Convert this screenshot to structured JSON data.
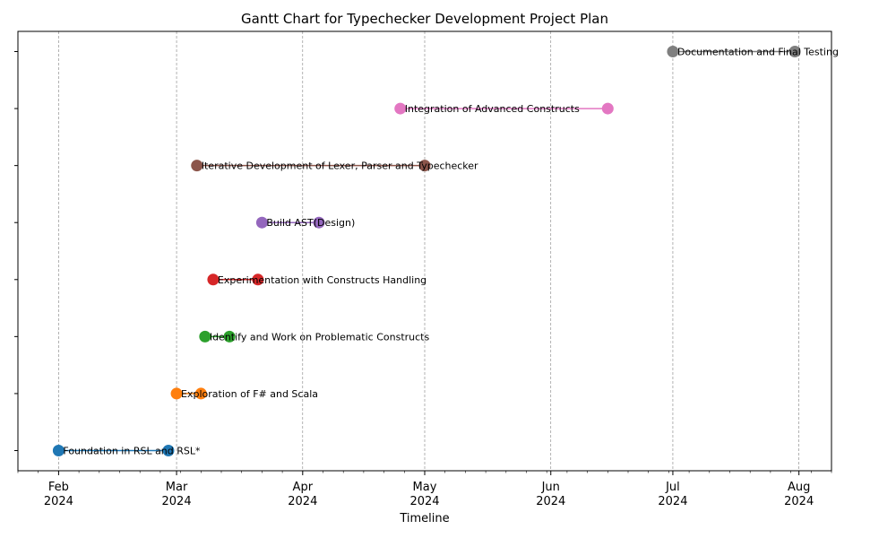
{
  "chart_data": {
    "type": "gantt",
    "title": "Gantt Chart for Typechecker Development Project Plan",
    "xlabel": "Timeline",
    "ylabel": "",
    "xlim": [
      "2024-01-22",
      "2024-08-09"
    ],
    "grid": "vertical dashed gray lines at month ticks",
    "x_ticks": [
      {
        "date": "2024-02-01",
        "month": "Feb",
        "year": "2024"
      },
      {
        "date": "2024-03-01",
        "month": "Mar",
        "year": "2024"
      },
      {
        "date": "2024-04-01",
        "month": "Apr",
        "year": "2024"
      },
      {
        "date": "2024-05-01",
        "month": "May",
        "year": "2024"
      },
      {
        "date": "2024-06-01",
        "month": "Jun",
        "year": "2024"
      },
      {
        "date": "2024-07-01",
        "month": "Jul",
        "year": "2024"
      },
      {
        "date": "2024-08-01",
        "month": "Aug",
        "year": "2024"
      }
    ],
    "tasks": [
      {
        "name": "Foundation in RSL and RSL*",
        "start": "2024-02-01",
        "end": "2024-02-28",
        "color": "#1f77b4"
      },
      {
        "name": "Exploration of F# and Scala",
        "start": "2024-03-01",
        "end": "2024-03-07",
        "color": "#ff7f0e"
      },
      {
        "name": "Identify and Work on Problematic Constructs",
        "start": "2024-03-08",
        "end": "2024-03-14",
        "color": "#2ca02c"
      },
      {
        "name": "Experimentation with Constructs Handling",
        "start": "2024-03-10",
        "end": "2024-03-21",
        "color": "#d62728"
      },
      {
        "name": "Build AST(Design)",
        "start": "2024-03-22",
        "end": "2024-04-05",
        "color": "#9467bd"
      },
      {
        "name": "Iterative Development of Lexer, Parser and Typechecker",
        "start": "2024-03-06",
        "end": "2024-05-01",
        "color": "#8c564b"
      },
      {
        "name": "Integration of Advanced Constructs",
        "start": "2024-04-25",
        "end": "2024-06-15",
        "color": "#e377c2"
      },
      {
        "name": "Documentation and Final Testing",
        "start": "2024-07-01",
        "end": "2024-07-31",
        "color": "#7f7f7f"
      }
    ]
  }
}
